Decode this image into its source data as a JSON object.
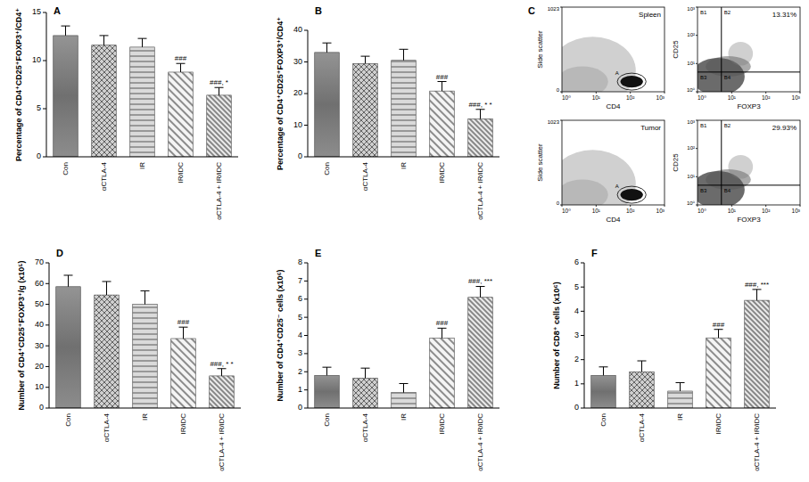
{
  "chart_data": [
    {
      "type": "bar",
      "title": "A",
      "y_label": "Percentage of CD4⁺CD25⁺FOXP3⁺/CD4⁺",
      "categories": [
        "Con",
        "αCTLA-4",
        "IR",
        "IR/iDC",
        "αCTLA-4 + IR/iDC"
      ],
      "values": [
        12.6,
        11.6,
        11.4,
        8.8,
        6.4
      ],
      "errors": [
        1.0,
        1.0,
        0.9,
        0.9,
        0.8
      ],
      "annotations": [
        null,
        null,
        null,
        "###",
        "###, *"
      ],
      "colors": [
        "#707070",
        "#cfcfcf",
        "#dadada",
        "#f4f4f4",
        "#ececec"
      ],
      "ylim": [
        0,
        15
      ],
      "yticks": [
        0,
        5,
        10,
        15
      ]
    },
    {
      "type": "bar",
      "title": "B",
      "y_label": "Percentage of CD4⁺CD25⁺FOXP3⁺/CD4⁺",
      "categories": [
        "Con",
        "αCTLA-4",
        "IR",
        "IR/iDC",
        "αCTLA-4 + IR/iDC"
      ],
      "values": [
        33.0,
        29.5,
        30.5,
        20.8,
        12.0
      ],
      "errors": [
        3.0,
        2.3,
        3.5,
        3.0,
        3.0
      ],
      "annotations": [
        null,
        null,
        null,
        "###",
        "###, * *"
      ],
      "colors": [
        "#707070",
        "#cfcfcf",
        "#dadada",
        "#f4f4f4",
        "#ececec"
      ],
      "ylim": [
        0,
        40
      ],
      "yticks": [
        0,
        10,
        20,
        30,
        40
      ]
    },
    {
      "type": "flow_cytometry",
      "title": "C",
      "plots": [
        {
          "label": "Spleen",
          "x_label": "CD4",
          "y_label": "Side scatter",
          "gate": "A",
          "log": "x",
          "xlim": [
            1,
            1000
          ],
          "xticks": [
            {
              "value": 1,
              "label": "10⁰"
            },
            {
              "value": 10,
              "label": "10¹"
            },
            {
              "value": 100,
              "label": "10²"
            },
            {
              "value": 1000,
              "label": "10³"
            }
          ],
          "ylim": [
            0,
            1023
          ],
          "yticks": [
            0,
            1023
          ]
        },
        {
          "x_label": "FOXP3",
          "y_label": "CD25",
          "log": true,
          "xlim": [
            1,
            1000
          ],
          "xticks": [
            {
              "value": 1,
              "label": "10⁰"
            },
            {
              "value": 10,
              "label": "10¹"
            },
            {
              "value": 100,
              "label": "10²"
            },
            {
              "value": 1000,
              "label": "10³"
            }
          ],
          "ylim": [
            1,
            1000
          ],
          "yticks": [
            {
              "value": 1,
              "label": "10⁰"
            },
            {
              "value": 10,
              "label": "10¹"
            },
            {
              "value": 100,
              "label": "10²"
            },
            {
              "value": 1000,
              "label": "10³"
            }
          ],
          "thresholds": {
            "x": 5,
            "y": 5
          },
          "quadrants": [
            "B1",
            "B2",
            "B3",
            "B4"
          ],
          "value": 13.31,
          "value_label": "13.31%"
        },
        {
          "label": "Tumor",
          "x_label": "CD4",
          "y_label": "Side scatter",
          "gate": "A",
          "log": "x",
          "xlim": [
            1,
            1000
          ],
          "xticks": [
            {
              "value": 1,
              "label": "10⁰"
            },
            {
              "value": 10,
              "label": "10¹"
            },
            {
              "value": 100,
              "label": "10²"
            },
            {
              "value": 1000,
              "label": "10³"
            }
          ],
          "ylim": [
            0,
            1023
          ],
          "yticks": [
            0,
            1023
          ]
        },
        {
          "x_label": "FOXP3",
          "y_label": "CD25",
          "log": true,
          "xlim": [
            1,
            1000
          ],
          "xticks": [
            {
              "value": 1,
              "label": "10⁰"
            },
            {
              "value": 10,
              "label": "10¹"
            },
            {
              "value": 100,
              "label": "10²"
            },
            {
              "value": 1000,
              "label": "10³"
            }
          ],
          "ylim": [
            1,
            1000
          ],
          "yticks": [
            {
              "value": 1,
              "label": "10⁰"
            },
            {
              "value": 10,
              "label": "10¹"
            },
            {
              "value": 100,
              "label": "10²"
            },
            {
              "value": 1000,
              "label": "10³"
            }
          ],
          "thresholds": {
            "x": 5,
            "y": 5
          },
          "quadrants": [
            "B1",
            "B2",
            "B3",
            "B4"
          ],
          "value": 29.93,
          "value_label": "29.93%"
        }
      ]
    },
    {
      "type": "bar",
      "title": "D",
      "y_label": "Number of CD4⁺CD25⁺FOXP3⁺/g (x10⁵)",
      "categories": [
        "Con",
        "αCTLA-4",
        "IR",
        "IR/iDC",
        "αCTLA-4 + IR/iDC"
      ],
      "values": [
        58.5,
        54.5,
        50.0,
        33.5,
        15.5
      ],
      "errors": [
        5.5,
        6.5,
        6.5,
        5.5,
        3.5
      ],
      "annotations": [
        null,
        null,
        null,
        "###",
        "###, * *"
      ],
      "colors": [
        "#707070",
        "#cfcfcf",
        "#dadada",
        "#f4f4f4",
        "#ececec"
      ],
      "ylim": [
        0,
        70
      ],
      "yticks": [
        0,
        10,
        20,
        30,
        40,
        50,
        60,
        70
      ]
    },
    {
      "type": "bar",
      "title": "E",
      "y_label": "Number of CD4⁺CD25⁻ cells (x10⁶)",
      "categories": [
        "Con",
        "αCTLA-4",
        "IR",
        "IR/iDC",
        "αCTLA-4 + IR/iDC"
      ],
      "values": [
        1.8,
        1.65,
        0.85,
        3.85,
        6.1
      ],
      "errors": [
        0.45,
        0.55,
        0.5,
        0.55,
        0.6
      ],
      "annotations": [
        null,
        null,
        null,
        "###",
        "###, ***"
      ],
      "colors": [
        "#707070",
        "#cfcfcf",
        "#dadada",
        "#f4f4f4",
        "#ececec"
      ],
      "ylim": [
        0,
        8
      ],
      "yticks": [
        0,
        1,
        2,
        3,
        4,
        5,
        6,
        7,
        8
      ]
    },
    {
      "type": "bar",
      "title": "F",
      "y_label": "Number of CD8⁺ cells (x10⁶)",
      "categories": [
        "Con",
        "αCTLA-4",
        "IR",
        "IR/iDC",
        "αCTLA-4 + IR/iDC"
      ],
      "values": [
        1.35,
        1.5,
        0.7,
        2.9,
        4.45
      ],
      "errors": [
        0.35,
        0.45,
        0.35,
        0.35,
        0.45
      ],
      "annotations": [
        null,
        null,
        null,
        "###",
        "###, ***"
      ],
      "colors": [
        "#707070",
        "#cfcfcf",
        "#dadada",
        "#f4f4f4",
        "#ececec"
      ],
      "ylim": [
        0,
        6
      ],
      "yticks": [
        0,
        1,
        2,
        3,
        4,
        5,
        6
      ]
    }
  ]
}
